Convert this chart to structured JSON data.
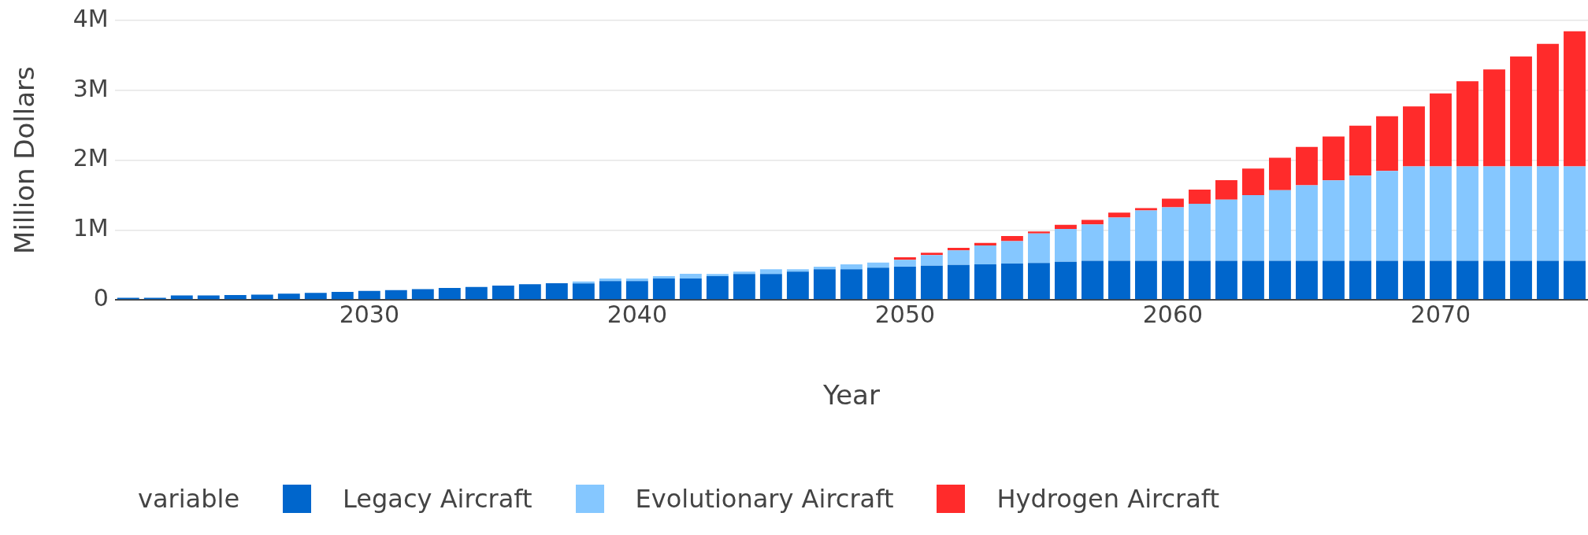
{
  "chart_data": {
    "type": "bar",
    "stacked": true,
    "xlabel": "Year",
    "ylabel": "Million Dollars",
    "legend_title": "variable",
    "legend": "bottom",
    "grid": "y",
    "x": [
      2021,
      2022,
      2023,
      2024,
      2025,
      2026,
      2027,
      2028,
      2029,
      2030,
      2031,
      2032,
      2033,
      2034,
      2035,
      2036,
      2037,
      2038,
      2039,
      2040,
      2041,
      2042,
      2043,
      2044,
      2045,
      2046,
      2047,
      2048,
      2049,
      2050,
      2051,
      2052,
      2053,
      2054,
      2055,
      2056,
      2057,
      2058,
      2059,
      2060,
      2061,
      2062,
      2063,
      2064,
      2065,
      2066,
      2067,
      2068,
      2069,
      2070,
      2071,
      2072,
      2073,
      2074,
      2075
    ],
    "xlim": [
      2020.5,
      2075.5
    ],
    "xticks": [
      2030,
      2040,
      2050,
      2060,
      2070
    ],
    "ylim": [
      0,
      4000000
    ],
    "yticks": [
      {
        "value": 0,
        "label": "0"
      },
      {
        "value": 1000000,
        "label": "1M"
      },
      {
        "value": 2000000,
        "label": "2M"
      },
      {
        "value": 3000000,
        "label": "3M"
      },
      {
        "value": 4000000,
        "label": "4M"
      }
    ],
    "series": [
      {
        "name": "Legacy Aircraft",
        "color": "#0066cc",
        "values": [
          30000,
          30000,
          65000,
          65000,
          70000,
          75000,
          90000,
          100000,
          115000,
          130000,
          140000,
          155000,
          170000,
          185000,
          205000,
          225000,
          240000,
          235000,
          270000,
          270000,
          305000,
          305000,
          340000,
          370000,
          370000,
          405000,
          440000,
          440000,
          460000,
          475000,
          490000,
          500000,
          510000,
          520000,
          530000,
          545000,
          560000,
          560000,
          560000,
          560000,
          560000,
          560000,
          560000,
          560000,
          560000,
          560000,
          560000,
          560000,
          560000,
          560000,
          560000,
          560000,
          560000,
          560000,
          560000
        ]
      },
      {
        "name": "Evolutionary Aircraft",
        "color": "#85c7ff",
        "values": [
          0,
          0,
          0,
          0,
          0,
          0,
          0,
          0,
          0,
          0,
          0,
          0,
          0,
          0,
          0,
          0,
          0,
          30000,
          35000,
          35000,
          35000,
          70000,
          30000,
          35000,
          70000,
          35000,
          35000,
          70000,
          75000,
          100000,
          150000,
          210000,
          270000,
          320000,
          420000,
          470000,
          520000,
          620000,
          720000,
          765000,
          815000,
          875000,
          940000,
          1010000,
          1080000,
          1150000,
          1220000,
          1285000,
          1350000,
          1350000,
          1350000,
          1350000,
          1350000,
          1350000,
          1350000
        ]
      },
      {
        "name": "Hydrogen Aircraft",
        "color": "#ff2b2b",
        "values": [
          0,
          0,
          0,
          0,
          0,
          0,
          0,
          0,
          0,
          0,
          0,
          0,
          0,
          0,
          0,
          0,
          0,
          0,
          0,
          0,
          0,
          0,
          0,
          0,
          0,
          0,
          0,
          0,
          0,
          35000,
          35000,
          35000,
          35000,
          75000,
          30000,
          60000,
          65000,
          70000,
          35000,
          125000,
          205000,
          280000,
          380000,
          465000,
          550000,
          630000,
          715000,
          785000,
          860000,
          1045000,
          1220000,
          1390000,
          1575000,
          1755000,
          1935000
        ]
      }
    ]
  }
}
